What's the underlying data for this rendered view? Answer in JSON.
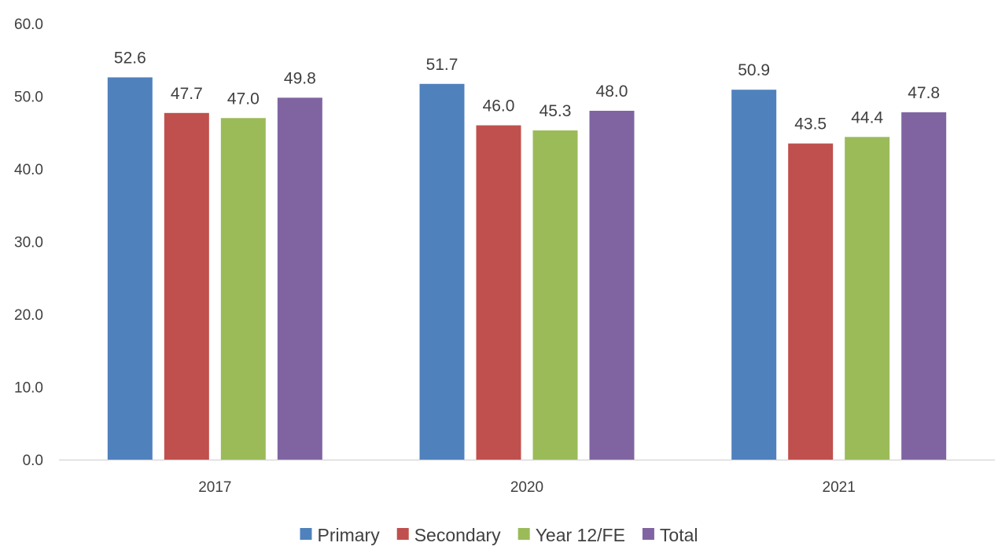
{
  "chart_data": {
    "type": "bar",
    "title": "",
    "xlabel": "",
    "ylabel": "",
    "categories": [
      "2017",
      "2020",
      "2021"
    ],
    "series": [
      {
        "name": "Primary",
        "color": "#4F81BD",
        "values": [
          52.6,
          51.7,
          50.9
        ]
      },
      {
        "name": "Secondary",
        "color": "#C0504D",
        "values": [
          47.7,
          46.0,
          43.5
        ]
      },
      {
        "name": "Year 12/FE",
        "color": "#9BBB59",
        "values": [
          47.0,
          45.3,
          44.4
        ]
      },
      {
        "name": "Total",
        "color": "#8064A2",
        "values": [
          49.8,
          48.0,
          47.8
        ]
      }
    ],
    "ylim": [
      0,
      60
    ],
    "y_ticks": [
      0,
      10,
      20,
      30,
      40,
      50,
      60
    ],
    "y_tick_labels": [
      "0.0",
      "10.0",
      "20.0",
      "30.0",
      "40.0",
      "50.0",
      "60.0"
    ],
    "data_labels": true,
    "data_label_format": "0.0",
    "grid": false,
    "legend_position": "bottom"
  }
}
